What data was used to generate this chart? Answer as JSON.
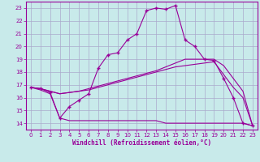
{
  "xlabel": "Windchill (Refroidissement éolien,°C)",
  "background_color": "#c8eaea",
  "grid_color": "#aaaacc",
  "line_color": "#990099",
  "xlim": [
    -0.5,
    23.5
  ],
  "ylim": [
    13.5,
    23.5
  ],
  "yticks": [
    14,
    15,
    16,
    17,
    18,
    19,
    20,
    21,
    22,
    23
  ],
  "xticks": [
    0,
    1,
    2,
    3,
    4,
    5,
    6,
    7,
    8,
    9,
    10,
    11,
    12,
    13,
    14,
    15,
    16,
    17,
    18,
    19,
    20,
    21,
    22,
    23
  ],
  "line1_x": [
    0,
    1,
    2,
    3,
    4,
    5,
    6,
    7,
    8,
    9,
    10,
    11,
    12,
    13,
    14,
    15,
    16,
    17,
    18,
    19,
    20,
    21,
    22,
    23
  ],
  "line1_y": [
    16.8,
    16.7,
    16.4,
    14.4,
    15.3,
    15.8,
    16.3,
    18.3,
    19.35,
    19.5,
    20.5,
    21.0,
    22.8,
    23.0,
    22.9,
    23.2,
    20.5,
    20.0,
    19.0,
    18.9,
    17.5,
    16.0,
    14.0,
    13.8
  ],
  "line2_x": [
    0,
    1,
    2,
    3,
    4,
    5,
    6,
    7,
    8,
    9,
    10,
    11,
    12,
    13,
    14,
    15,
    16,
    17,
    18,
    19,
    20,
    21,
    22,
    23
  ],
  "line2_y": [
    16.8,
    16.6,
    16.3,
    14.4,
    14.2,
    14.2,
    14.2,
    14.2,
    14.2,
    14.2,
    14.2,
    14.2,
    14.2,
    14.2,
    14.0,
    14.0,
    14.0,
    14.0,
    14.0,
    14.0,
    14.0,
    14.0,
    14.0,
    13.8
  ],
  "line3_x": [
    0,
    1,
    2,
    3,
    4,
    5,
    6,
    7,
    8,
    9,
    10,
    11,
    12,
    13,
    14,
    15,
    16,
    17,
    18,
    19,
    20,
    21,
    22,
    23
  ],
  "line3_y": [
    16.8,
    16.7,
    16.5,
    16.3,
    16.4,
    16.5,
    16.7,
    16.9,
    17.1,
    17.3,
    17.5,
    17.7,
    17.9,
    18.1,
    18.4,
    18.7,
    19.0,
    19.0,
    19.0,
    19.0,
    18.5,
    17.5,
    16.5,
    13.8
  ],
  "line4_x": [
    0,
    1,
    2,
    3,
    4,
    5,
    6,
    7,
    8,
    9,
    10,
    11,
    12,
    13,
    14,
    15,
    16,
    17,
    18,
    19,
    20,
    21,
    22,
    23
  ],
  "line4_y": [
    16.8,
    16.7,
    16.5,
    16.3,
    16.4,
    16.5,
    16.6,
    16.8,
    17.0,
    17.2,
    17.4,
    17.6,
    17.8,
    18.0,
    18.2,
    18.4,
    18.5,
    18.6,
    18.7,
    18.8,
    17.8,
    16.8,
    16.0,
    13.8
  ]
}
